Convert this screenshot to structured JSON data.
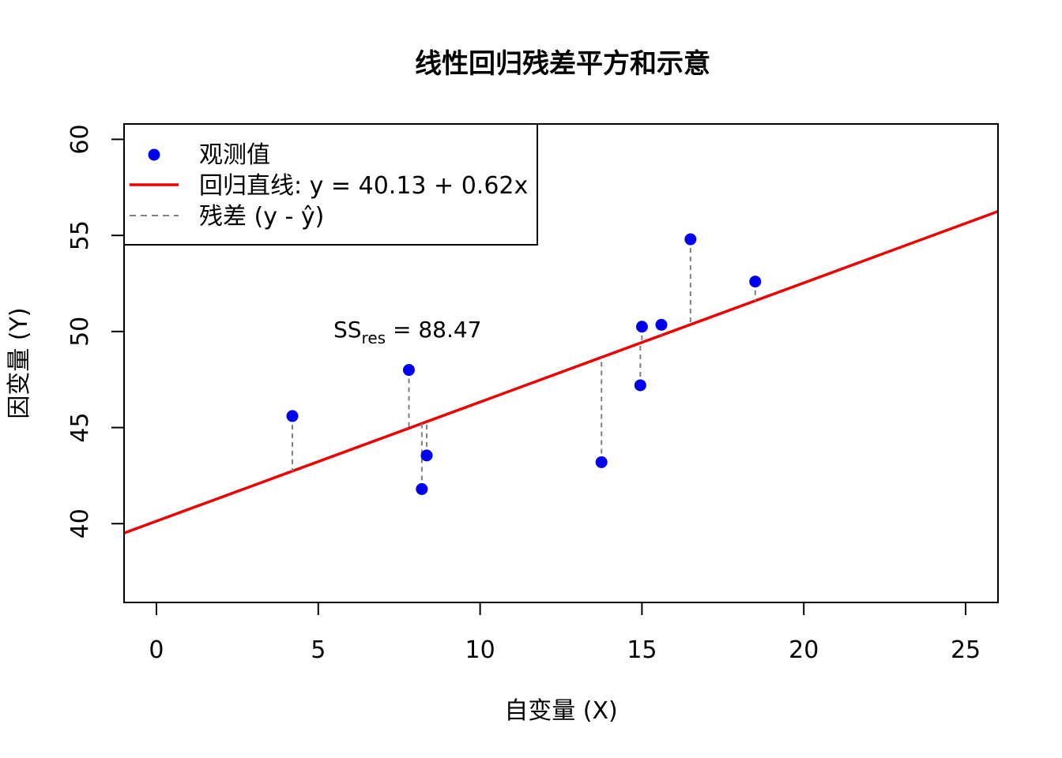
{
  "chart_data": {
    "type": "scatter",
    "title": "线性回归残差平方和示意",
    "xlabel": "自变量 (X)",
    "ylabel": "因变量 (Y)",
    "xlim": [
      -1,
      26
    ],
    "ylim": [
      35.9,
      60.8
    ],
    "x_ticks": [
      0,
      5,
      10,
      15,
      20,
      25
    ],
    "y_ticks": [
      40,
      45,
      50,
      55,
      60
    ],
    "grid": false,
    "legend_position": "top-left",
    "colors": {
      "points": "#0000ee",
      "fit_line": "#ee0000",
      "residuals": "#808080"
    },
    "points": {
      "name": "观测值",
      "x": [
        4.2,
        7.8,
        8.2,
        8.35,
        13.75,
        14.95,
        15.0,
        15.6,
        16.5,
        18.5
      ],
      "y": [
        45.6,
        48.0,
        41.8,
        43.55,
        43.2,
        47.2,
        50.25,
        50.35,
        54.8,
        52.6
      ]
    },
    "fit": {
      "name": "回归直线: y = 40.13 + 0.62x",
      "intercept": 40.13,
      "slope": 0.62
    },
    "residual_legend": "残差 (y - ŷ)",
    "annotation": {
      "ss_main": "SS",
      "ss_sub": "res",
      "ss_value": " = 88.47",
      "x": 7.9,
      "y": 49.9
    }
  }
}
